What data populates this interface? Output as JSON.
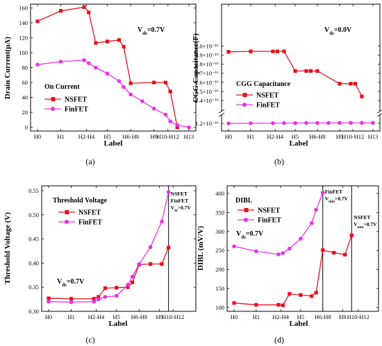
{
  "colors": {
    "nsfet": "#e8101c",
    "finfet": "#e832e8",
    "axis": "#000000"
  },
  "chart_data": [
    {
      "type": "line",
      "panel_label": "(a)",
      "ylabel": "Drain Current(μA)",
      "xlabel": "Label",
      "annotation": "Vds=0.7V",
      "legend_title": "On Current",
      "ylim": [
        -5,
        165
      ],
      "yticks": [
        "0",
        "20",
        "40",
        "60",
        "80",
        "100",
        "120",
        "140",
        "160"
      ],
      "xticks": [
        "H0",
        "H1",
        "H2-H4",
        "H5",
        "H6-H8",
        "H9",
        "H10-H12",
        "H13"
      ],
      "series": [
        {
          "name": "NSFET",
          "key": "nsfet",
          "marker": "square",
          "x": [
            0,
            1,
            2,
            2.2,
            2.5,
            3,
            3.5,
            3.7,
            4,
            5,
            5.5,
            5.7,
            6
          ],
          "y": [
            142,
            156,
            161,
            154,
            113,
            115,
            117,
            108,
            59,
            60,
            60,
            48,
            0
          ]
        },
        {
          "name": "FinFET",
          "key": "finfet",
          "marker": "circle",
          "x": [
            0,
            1,
            2,
            2.2,
            2.5,
            3,
            3.5,
            3.7,
            4,
            4.5,
            5,
            5.5,
            5.7,
            6,
            6.5
          ],
          "y": [
            84,
            88,
            90,
            86,
            80,
            72,
            62,
            54,
            44,
            35,
            25,
            17,
            8,
            3,
            0
          ]
        }
      ]
    },
    {
      "type": "line",
      "panel_label": "(b)",
      "ylabel": "CGG Capacitance(F)",
      "xlabel": "Label",
      "annotation": "Vds=0.0V",
      "legend_title": "CGG Capacitance",
      "yticks": [
        "1.2×10⁻¹⁶",
        "1.4×10⁻¹⁶",
        "1.5×10⁻¹⁶",
        "1.6×10⁻¹⁶",
        "1.7×10⁻¹⁶",
        "1.8×10⁻¹⁶",
        "1.9×10⁻¹⁶",
        "2.0×10⁻¹⁶"
      ],
      "xticks": [
        "H0",
        "H1",
        "H2-H4",
        "H5",
        "H6-H8",
        "H9",
        "H10-H12",
        "H13"
      ],
      "series": [
        {
          "name": "NSFET",
          "key": "nsfet",
          "marker": "square",
          "x": [
            0,
            1,
            2,
            2.2,
            2.5,
            3,
            3.5,
            3.7,
            4,
            5,
            5.5,
            5.7,
            6
          ],
          "y": [
            1.935e-16,
            1.94e-16,
            1.94e-16,
            1.94e-16,
            1.94e-16,
            1.725e-16,
            1.725e-16,
            1.725e-16,
            1.725e-16,
            1.585e-16,
            1.585e-16,
            1.585e-16,
            1.445e-16
          ]
        },
        {
          "name": "FinFET",
          "key": "finfet",
          "marker": "circle",
          "x": [
            0,
            1,
            2,
            2.5,
            3,
            3.5,
            4,
            4.5,
            5,
            5.5,
            6,
            6.5
          ],
          "y": [
            1.2e-16,
            1.202e-16,
            1.203e-16,
            1.204e-16,
            1.204e-16,
            1.205e-16,
            1.205e-16,
            1.205e-16,
            1.206e-16,
            1.206e-16,
            1.206e-16,
            1.207e-16
          ]
        }
      ]
    },
    {
      "type": "line",
      "panel_label": "(c)",
      "ylabel": "Threshold Voltage (V)",
      "xlabel": "Label",
      "annotation": "Vds=0.7V",
      "legend_title": "Threshold Voltage",
      "vline_note": [
        "NSFET",
        "FinFET",
        "Vds>0.7V"
      ],
      "ylim": [
        0.3,
        0.56
      ],
      "yticks": [
        "0.30",
        "0.35",
        "0.40",
        "0.45",
        "0.50",
        "0.55"
      ],
      "xticks": [
        "H0",
        "H1",
        "H2-H4",
        "H5",
        "H6-H8",
        "H9",
        "H10-H12"
      ],
      "series": [
        {
          "name": "NSFET",
          "key": "nsfet",
          "marker": "square",
          "x": [
            0,
            1,
            2,
            2.2,
            2.5,
            3,
            3.5,
            3.7,
            4,
            4.5,
            5,
            5.3
          ],
          "y": [
            0.327,
            0.326,
            0.326,
            0.33,
            0.348,
            0.349,
            0.35,
            0.36,
            0.397,
            0.398,
            0.398,
            0.432
          ]
        },
        {
          "name": "FinFET",
          "key": "finfet",
          "marker": "circle",
          "x": [
            0,
            1,
            2,
            2.2,
            2.5,
            3,
            3.5,
            3.7,
            4,
            4.5,
            5,
            5.3
          ],
          "y": [
            0.32,
            0.319,
            0.32,
            0.325,
            0.33,
            0.332,
            0.355,
            0.372,
            0.398,
            0.433,
            0.486,
            0.547
          ]
        }
      ]
    },
    {
      "type": "line",
      "panel_label": "(d)",
      "ylabel": "DIBL (mV/V)",
      "xlabel": "Label",
      "annotation": "Vds=0.7V",
      "legend_title": "DIBL",
      "vline_notes": [
        [
          "FinFET",
          "Vmin>0.7V"
        ],
        [
          "NSFET",
          "Vmin>0.7V"
        ]
      ],
      "ylim": [
        90,
        420
      ],
      "yticks": [
        "100",
        "150",
        "200",
        "250",
        "300",
        "350",
        "400"
      ],
      "xticks": [
        "H0",
        "H1",
        "H2-H4",
        "H5",
        "H6-H8",
        "H9",
        "H10-H12"
      ],
      "series": [
        {
          "name": "NSFET",
          "key": "nsfet",
          "marker": "square",
          "x": [
            0,
            1,
            2,
            2.2,
            2.5,
            3,
            3.5,
            3.7,
            4,
            4.5,
            5,
            5.3
          ],
          "y": [
            112,
            107,
            107,
            106,
            136,
            133,
            130,
            139,
            251,
            244,
            239,
            290
          ]
        },
        {
          "name": "FinFET",
          "key": "finfet",
          "marker": "circle",
          "x": [
            0,
            1,
            2,
            2.2,
            2.5,
            3,
            3.5,
            3.7,
            4
          ],
          "y": [
            261,
            248,
            240,
            243,
            255,
            281,
            322,
            357,
            402
          ]
        }
      ]
    }
  ]
}
